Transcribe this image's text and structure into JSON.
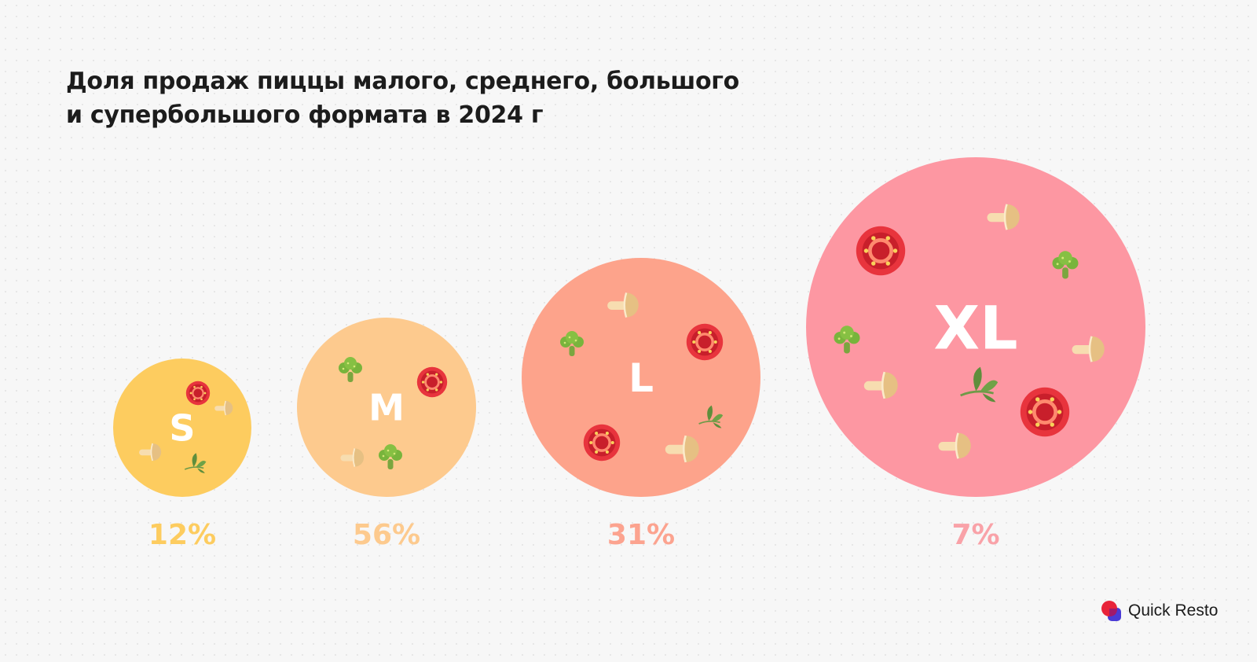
{
  "chart_data": {
    "type": "bubble",
    "title_lines": [
      "Доля продаж пиццы малого, среднего, большого",
      "и супербольшого формата в 2024 г"
    ],
    "categories": [
      "S",
      "M",
      "L",
      "XL"
    ],
    "values": [
      12,
      56,
      31,
      7
    ],
    "value_labels": [
      "12%",
      "56%",
      "31%",
      "7%"
    ],
    "colors": [
      "#fdcc5f",
      "#fdca8e",
      "#fda38b",
      "#fd97a2"
    ],
    "label_colors": [
      "#fdcc5f",
      "#fdca8e",
      "#fca38f",
      "#f9a2a8"
    ]
  },
  "icons": [
    "tomato-icon",
    "mushroom-icon",
    "broccoli-icon",
    "herb-leaf-icon"
  ],
  "brand": {
    "name": "Quick Resto",
    "logo_colors": [
      "#e8233a",
      "#4a3bd6"
    ]
  }
}
